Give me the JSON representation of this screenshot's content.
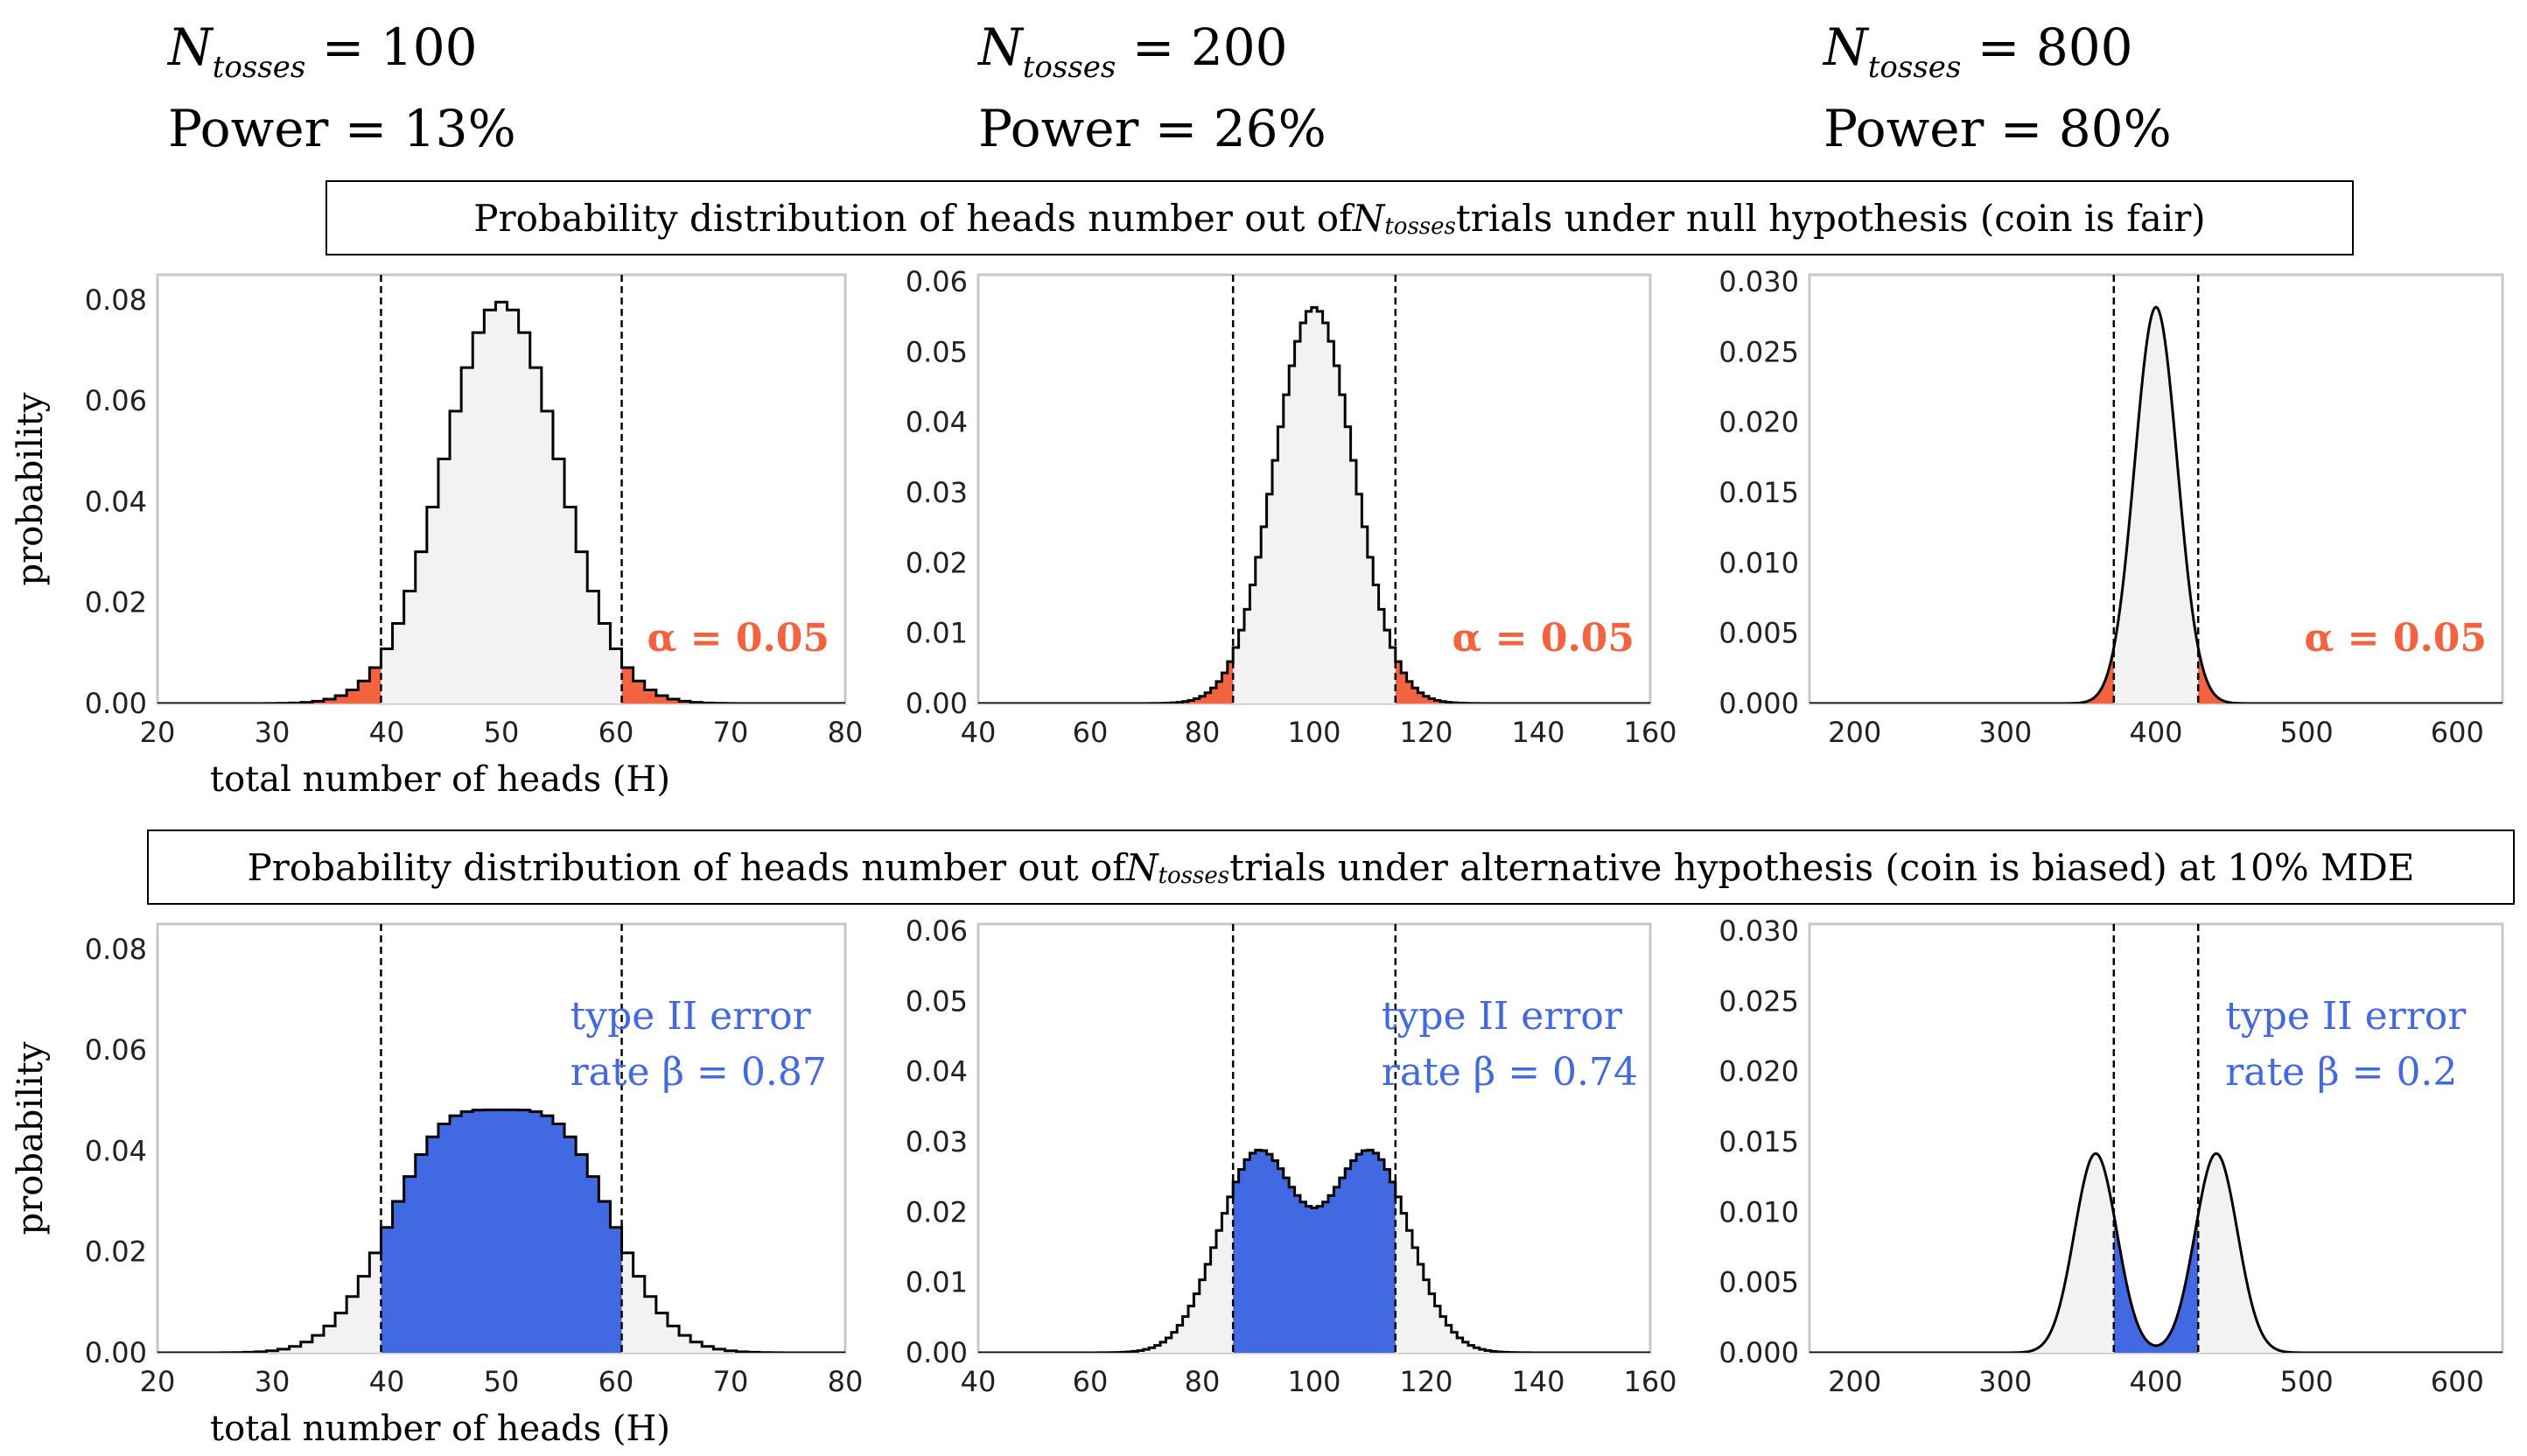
{
  "headers": [
    {
      "n_label_main": "N",
      "n_label_sub": "tosses",
      "n_value": "= 100",
      "power_text": "Power = 13%"
    },
    {
      "n_label_main": "N",
      "n_label_sub": "tosses",
      "n_value": "= 200",
      "power_text": "Power = 26%"
    },
    {
      "n_label_main": "N",
      "n_label_sub": "tosses",
      "n_value": "= 800",
      "power_text": "Power = 80%"
    }
  ],
  "banners": {
    "null": {
      "before": "Probability distribution of heads number out of ",
      "n_main": "N",
      "n_sub": "tosses",
      "after": " trials under null hypothesis (coin is fair)"
    },
    "alt": {
      "before": "Probability distribution of heads number out of ",
      "n_main": "N",
      "n_sub": "tosses",
      "after": " trials under alternative hypothesis (coin is biased) at 10% MDE"
    }
  },
  "colors": {
    "alpha_region": "#f4633f",
    "beta_region": "#4169e1",
    "fill": "#f2f2f2",
    "beta_text": "#4169e1",
    "alpha_text": "#f4633f",
    "frame": "#c8c8c8"
  },
  "chart_data": [
    {
      "type": "area",
      "row": "null",
      "n": 100,
      "p": [
        0.5
      ],
      "xlim": [
        20,
        80
      ],
      "ylim": [
        0,
        0.085
      ],
      "xticks": [
        20,
        30,
        40,
        50,
        60,
        70,
        80
      ],
      "yticks": [
        "0.00",
        "0.02",
        "0.04",
        "0.06",
        "0.08"
      ],
      "xlabel": "total number of heads (H)",
      "ylabel": "probability",
      "crit": [
        39.5,
        60.5
      ],
      "shade": "tails",
      "annotation": [
        "α = 0.05"
      ],
      "step": true
    },
    {
      "type": "area",
      "row": "null",
      "n": 200,
      "p": [
        0.5
      ],
      "xlim": [
        40,
        160
      ],
      "ylim": [
        0,
        0.061
      ],
      "xticks": [
        40,
        60,
        80,
        100,
        120,
        140,
        160
      ],
      "yticks": [
        "0.00",
        "0.01",
        "0.02",
        "0.03",
        "0.04",
        "0.05",
        "0.06"
      ],
      "xlabel": "",
      "ylabel": "",
      "crit": [
        85.5,
        114.5
      ],
      "shade": "tails",
      "annotation": [
        "α = 0.05"
      ],
      "step": true
    },
    {
      "type": "area",
      "row": "null",
      "n": 800,
      "p": [
        0.5
      ],
      "xlim": [
        170,
        630
      ],
      "ylim": [
        0,
        0.0305
      ],
      "xticks": [
        200,
        300,
        400,
        500,
        600
      ],
      "yticks": [
        "0.000",
        "0.005",
        "0.010",
        "0.015",
        "0.020",
        "0.025",
        "0.030"
      ],
      "xlabel": "",
      "ylabel": "",
      "crit": [
        372,
        428
      ],
      "shade": "tails",
      "annotation": [
        "α = 0.05"
      ],
      "step": false
    },
    {
      "type": "area",
      "row": "alt",
      "n": 100,
      "p": [
        0.45,
        0.55
      ],
      "xlim": [
        20,
        80
      ],
      "ylim": [
        0,
        0.085
      ],
      "xticks": [
        20,
        30,
        40,
        50,
        60,
        70,
        80
      ],
      "yticks": [
        "0.00",
        "0.02",
        "0.04",
        "0.06",
        "0.08"
      ],
      "xlabel": "total number of heads (H)",
      "ylabel": "probability",
      "crit": [
        39.5,
        60.5
      ],
      "shade": "middle",
      "annotation": [
        "type II error",
        "rate β = 0.87"
      ],
      "step": true
    },
    {
      "type": "area",
      "row": "alt",
      "n": 200,
      "p": [
        0.45,
        0.55
      ],
      "xlim": [
        40,
        160
      ],
      "ylim": [
        0,
        0.061
      ],
      "xticks": [
        40,
        60,
        80,
        100,
        120,
        140,
        160
      ],
      "yticks": [
        "0.00",
        "0.01",
        "0.02",
        "0.03",
        "0.04",
        "0.05",
        "0.06"
      ],
      "xlabel": "",
      "ylabel": "",
      "crit": [
        85.5,
        114.5
      ],
      "shade": "middle",
      "annotation": [
        "type II error",
        "rate β = 0.74"
      ],
      "step": true
    },
    {
      "type": "area",
      "row": "alt",
      "n": 800,
      "p": [
        0.45,
        0.55
      ],
      "xlim": [
        170,
        630
      ],
      "ylim": [
        0,
        0.0305
      ],
      "xticks": [
        200,
        300,
        400,
        500,
        600
      ],
      "yticks": [
        "0.000",
        "0.005",
        "0.010",
        "0.015",
        "0.020",
        "0.025",
        "0.030"
      ],
      "xlabel": "",
      "ylabel": "",
      "crit": [
        372,
        428
      ],
      "shade": "middle",
      "annotation": [
        "type II error",
        "rate β = 0.2"
      ],
      "step": false
    }
  ]
}
